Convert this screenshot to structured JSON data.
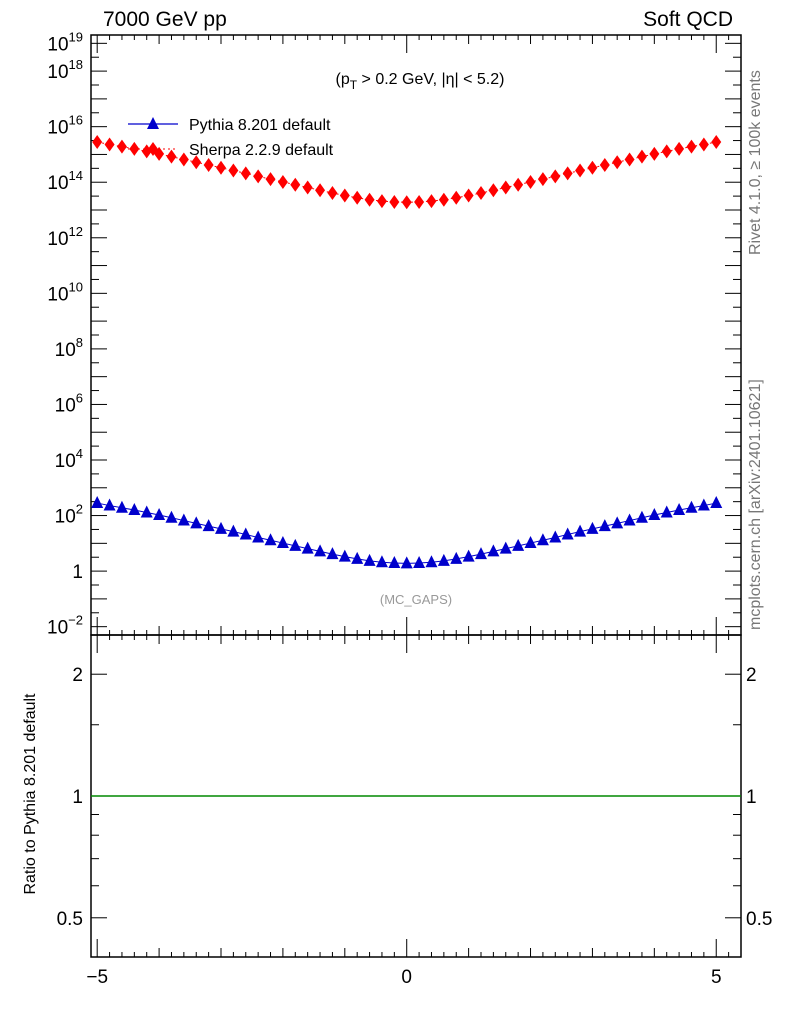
{
  "header": {
    "left": "7000 GeV pp",
    "right": "Soft QCD"
  },
  "side_labels": {
    "rivet": "Rivet 4.1.0, ≥ 100k events",
    "mcplots": "mcplots.cern.ch [arXiv:2401.10621]"
  },
  "chart_data": [
    {
      "type": "scatter",
      "yscale": "log",
      "title": "",
      "annotation_cut": "(p_T > 0.2 GeV, |η| < 5.2)",
      "watermark": "(MC_GAPS)",
      "xlim": [
        -5.1,
        5.4
      ],
      "ylim_exponent": [
        -2.3,
        19.3
      ],
      "ytick_labels": [
        {
          "exp": -2,
          "base": "10",
          "sup": "−2"
        },
        {
          "exp": 0,
          "base": "1",
          "sup": ""
        },
        {
          "exp": 2,
          "base": "10",
          "sup": "2"
        },
        {
          "exp": 4,
          "base": "10",
          "sup": "4"
        },
        {
          "exp": 6,
          "base": "10",
          "sup": "6"
        },
        {
          "exp": 8,
          "base": "10",
          "sup": "8"
        },
        {
          "exp": 10,
          "base": "10",
          "sup": "10"
        },
        {
          "exp": 12,
          "base": "10",
          "sup": "12"
        },
        {
          "exp": 14,
          "base": "10",
          "sup": "14"
        },
        {
          "exp": 16,
          "base": "10",
          "sup": "16"
        },
        {
          "exp": 18,
          "base": "10",
          "sup": "18"
        },
        {
          "exp": 19,
          "base": "10",
          "sup": "19"
        }
      ],
      "legend": [
        {
          "label": "Pythia 8.201 default",
          "color": "#0000cc",
          "marker": "triangle"
        },
        {
          "label": "Sherpa 2.2.9 default",
          "color": "#ff0000",
          "marker": "diamond"
        }
      ],
      "series": [
        {
          "name": "Pythia 8.201 default",
          "color": "#0000cc",
          "marker": "triangle",
          "x": [
            -5.0,
            -4.8,
            -4.6,
            -4.4,
            -4.2,
            -4.0,
            -3.8,
            -3.6,
            -3.4,
            -3.2,
            -3.0,
            -2.8,
            -2.6,
            -2.4,
            -2.2,
            -2.0,
            -1.8,
            -1.6,
            -1.4,
            -1.2,
            -1.0,
            -0.8,
            -0.6,
            -0.4,
            -0.2,
            0.0,
            0.2,
            0.4,
            0.6,
            0.8,
            1.0,
            1.2,
            1.4,
            1.6,
            1.8,
            2.0,
            2.2,
            2.4,
            2.6,
            2.8,
            3.0,
            3.2,
            3.4,
            3.6,
            3.8,
            4.0,
            4.2,
            4.4,
            4.6,
            4.8,
            5.0
          ],
          "y_exponent": [
            2.45,
            2.36,
            2.28,
            2.2,
            2.11,
            2.02,
            1.92,
            1.82,
            1.72,
            1.62,
            1.52,
            1.42,
            1.32,
            1.21,
            1.11,
            1.01,
            0.91,
            0.81,
            0.71,
            0.61,
            0.52,
            0.44,
            0.37,
            0.32,
            0.29,
            0.28,
            0.29,
            0.32,
            0.37,
            0.44,
            0.52,
            0.61,
            0.71,
            0.81,
            0.91,
            1.01,
            1.11,
            1.21,
            1.32,
            1.42,
            1.52,
            1.62,
            1.72,
            1.82,
            1.92,
            2.02,
            2.11,
            2.2,
            2.28,
            2.36,
            2.45
          ]
        },
        {
          "name": "Sherpa 2.2.9 default",
          "color": "#ff0000",
          "marker": "diamond",
          "x": [
            -5.0,
            -4.8,
            -4.6,
            -4.4,
            -4.2,
            -4.0,
            -3.8,
            -3.6,
            -3.4,
            -3.2,
            -3.0,
            -2.8,
            -2.6,
            -2.4,
            -2.2,
            -2.0,
            -1.8,
            -1.6,
            -1.4,
            -1.2,
            -1.0,
            -0.8,
            -0.6,
            -0.4,
            -0.2,
            0.0,
            0.2,
            0.4,
            0.6,
            0.8,
            1.0,
            1.2,
            1.4,
            1.6,
            1.8,
            2.0,
            2.2,
            2.4,
            2.6,
            2.8,
            3.0,
            3.2,
            3.4,
            3.6,
            3.8,
            4.0,
            4.2,
            4.4,
            4.6,
            4.8,
            5.0
          ],
          "y_exponent": [
            15.45,
            15.36,
            15.28,
            15.2,
            15.11,
            15.02,
            14.92,
            14.82,
            14.72,
            14.62,
            14.52,
            14.42,
            14.32,
            14.21,
            14.11,
            14.01,
            13.91,
            13.81,
            13.71,
            13.61,
            13.52,
            13.44,
            13.37,
            13.32,
            13.29,
            13.28,
            13.29,
            13.32,
            13.37,
            13.44,
            13.52,
            13.61,
            13.71,
            13.81,
            13.91,
            14.01,
            14.11,
            14.21,
            14.32,
            14.42,
            14.52,
            14.62,
            14.72,
            14.82,
            14.92,
            15.02,
            15.11,
            15.2,
            15.28,
            15.36,
            15.45
          ]
        }
      ]
    },
    {
      "type": "line",
      "ylabel": "Ratio to Pythia 8.201 default",
      "xlim": [
        -5.1,
        5.4
      ],
      "ylim": [
        0.4,
        2.5
      ],
      "yscale": "log",
      "ytick_labels": [
        "0.5",
        "1",
        "2"
      ],
      "xtick_labels": [
        "−5",
        "0",
        "5"
      ],
      "ratio_line": {
        "y": 1,
        "color": "#008800"
      }
    }
  ]
}
